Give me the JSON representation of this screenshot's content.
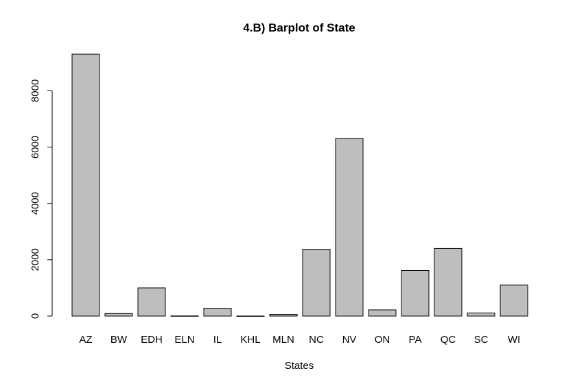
{
  "chart_data": {
    "type": "bar",
    "title": "4.B) Barplot of State",
    "xlabel": "States",
    "ylabel": "",
    "categories": [
      "AZ",
      "BW",
      "EDH",
      "ELN",
      "IL",
      "KHL",
      "MLN",
      "NC",
      "NV",
      "ON",
      "PA",
      "QC",
      "SC",
      "WI"
    ],
    "values": [
      9300,
      90,
      1000,
      5,
      280,
      2,
      60,
      2370,
      6310,
      220,
      1620,
      2400,
      110,
      1100
    ],
    "yticks": [
      0,
      2000,
      4000,
      6000,
      8000
    ],
    "ylim": [
      0,
      9300
    ],
    "grid": false,
    "colors": {
      "bar_fill": "#bebebe",
      "bar_stroke": "#000000",
      "axis": "#000000"
    }
  }
}
